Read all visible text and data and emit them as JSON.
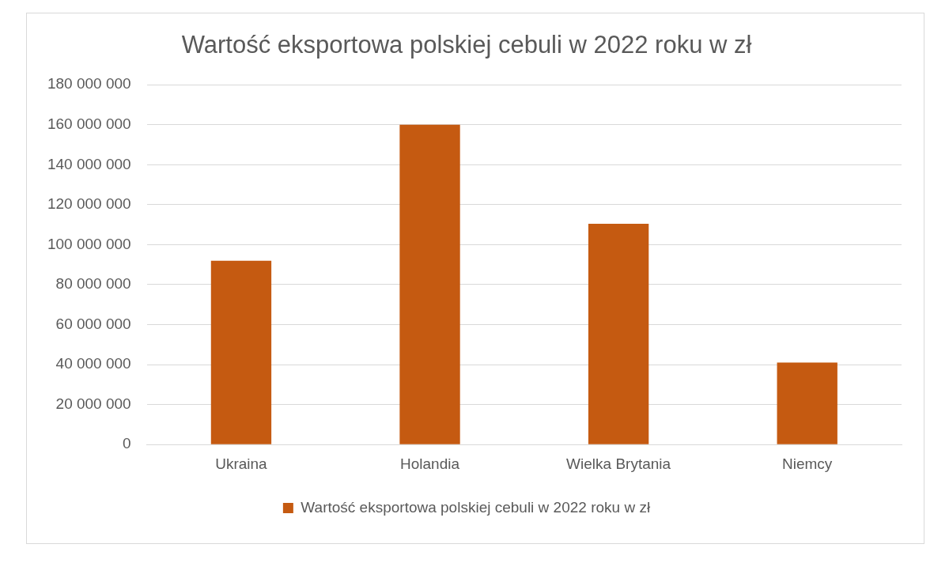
{
  "chart_data": {
    "type": "bar",
    "title": "Wartość eksportowa polskiej cebuli w 2022 roku w zł",
    "categories": [
      "Ukraina",
      "Holandia",
      "Wielka Brytania",
      "Niemcy"
    ],
    "series": [
      {
        "name": "Wartość eksportowa polskiej cebuli w 2022 roku w zł",
        "color": "#c55a11",
        "values": [
          92000000,
          160000000,
          110500000,
          41000000
        ]
      }
    ],
    "ylim": [
      0,
      180000000
    ],
    "yticks": [
      {
        "value": 0,
        "label": "0"
      },
      {
        "value": 20000000,
        "label": "20 000 000"
      },
      {
        "value": 40000000,
        "label": "40 000 000"
      },
      {
        "value": 60000000,
        "label": "60 000 000"
      },
      {
        "value": 80000000,
        "label": "80 000 000"
      },
      {
        "value": 100000000,
        "label": "100 000 000"
      },
      {
        "value": 120000000,
        "label": "120 000 000"
      },
      {
        "value": 140000000,
        "label": "140 000 000"
      },
      {
        "value": 160000000,
        "label": "160 000 000"
      },
      {
        "value": 180000000,
        "label": "180 000 000"
      }
    ],
    "grid": "y",
    "legend": "bottom"
  }
}
